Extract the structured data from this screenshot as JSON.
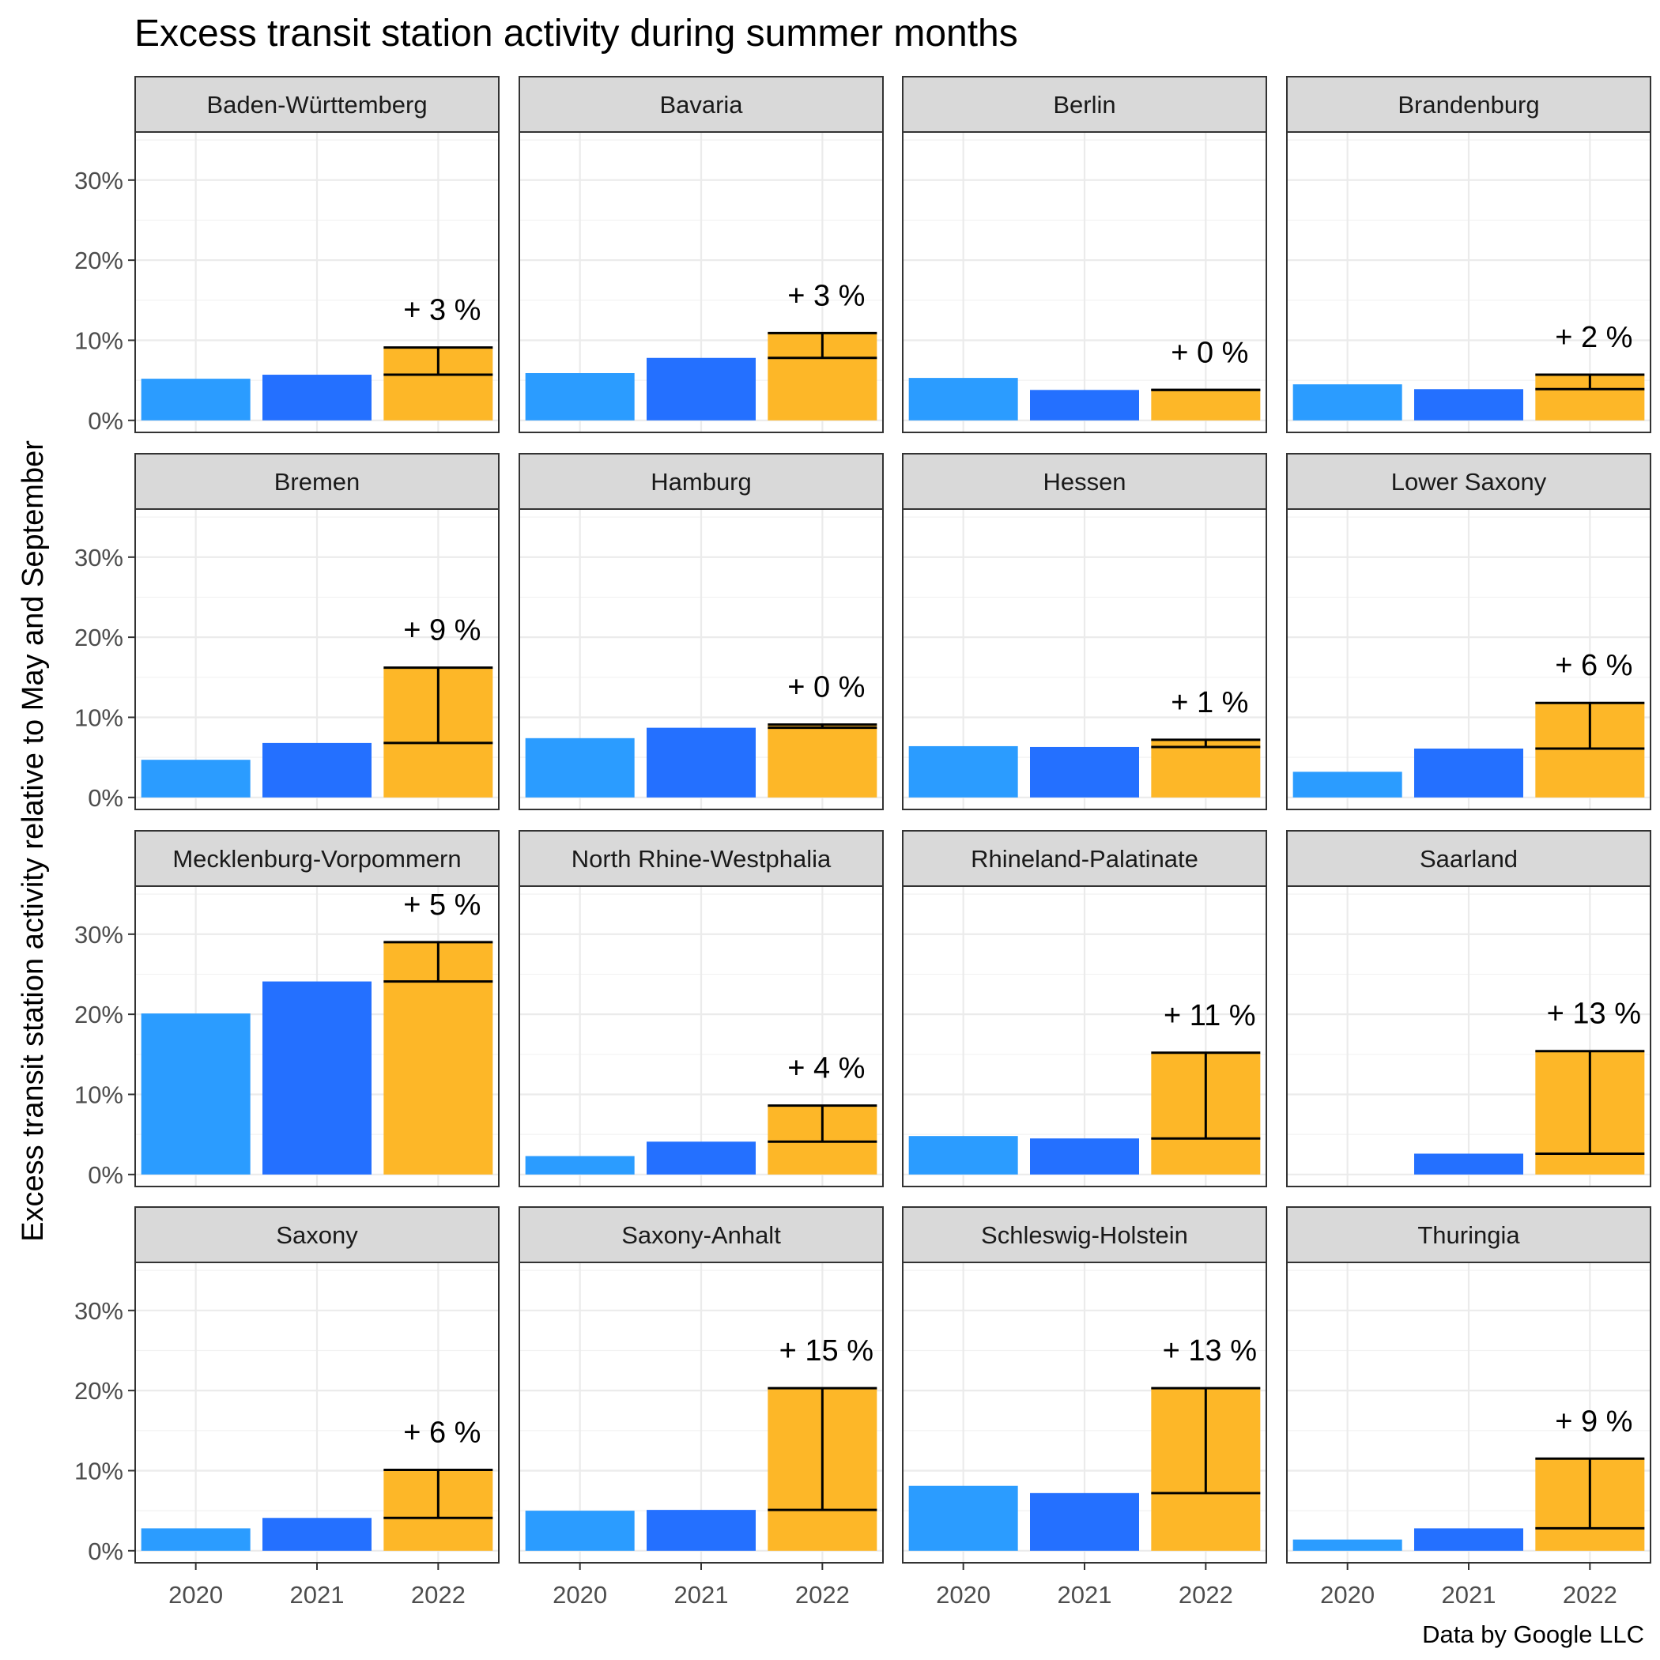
{
  "chart_data": {
    "type": "bar",
    "title": "Excess transit station activity during summer months",
    "ylabel": "Excess transit station activity relative to May and September",
    "xlabel": "",
    "caption": "Data by Google LLC",
    "categories": [
      "2020",
      "2021",
      "2022"
    ],
    "ylim": [
      -1.5,
      36
    ],
    "y_ticks": [
      0,
      10,
      20,
      30
    ],
    "y_tick_labels": [
      "0%",
      "10%",
      "20%",
      "30%"
    ],
    "grid": true,
    "colors": {
      "2020": "#2b9cff",
      "2021": "#2470ff",
      "2022": "#fdb728"
    },
    "facets": [
      {
        "name": "Baden-Württemberg",
        "values": [
          5.2,
          5.7,
          9.1
        ],
        "annotation": "+ 3 %"
      },
      {
        "name": "Bavaria",
        "values": [
          5.9,
          7.8,
          10.9
        ],
        "annotation": "+ 3 %"
      },
      {
        "name": "Berlin",
        "values": [
          5.3,
          3.8,
          3.8
        ],
        "annotation": "+ 0 %"
      },
      {
        "name": "Brandenburg",
        "values": [
          4.5,
          3.9,
          5.7
        ],
        "annotation": "+ 2 %"
      },
      {
        "name": "Bremen",
        "values": [
          4.7,
          6.8,
          16.2
        ],
        "annotation": "+ 9 %"
      },
      {
        "name": "Hamburg",
        "values": [
          7.4,
          8.7,
          9.1
        ],
        "annotation": "+ 0 %"
      },
      {
        "name": "Hessen",
        "values": [
          6.4,
          6.3,
          7.2
        ],
        "annotation": "+ 1 %"
      },
      {
        "name": "Lower Saxony",
        "values": [
          3.2,
          6.1,
          11.8
        ],
        "annotation": "+ 6 %"
      },
      {
        "name": "Mecklenburg-Vorpommern",
        "values": [
          20.1,
          24.1,
          29.0
        ],
        "annotation": "+ 5 %"
      },
      {
        "name": "North Rhine-Westphalia",
        "values": [
          2.3,
          4.1,
          8.6
        ],
        "annotation": "+ 4 %"
      },
      {
        "name": "Rhineland-Palatinate",
        "values": [
          4.8,
          4.5,
          15.2
        ],
        "annotation": "+ 11 %"
      },
      {
        "name": "Saarland",
        "values": [
          0.0,
          2.6,
          15.4
        ],
        "annotation": "+ 13 %"
      },
      {
        "name": "Saxony",
        "values": [
          2.8,
          4.1,
          10.1
        ],
        "annotation": "+ 6 %"
      },
      {
        "name": "Saxony-Anhalt",
        "values": [
          5.0,
          5.1,
          20.3
        ],
        "annotation": "+ 15 %"
      },
      {
        "name": "Schleswig-Holstein",
        "values": [
          8.1,
          7.2,
          20.3
        ],
        "annotation": "+ 13 %"
      },
      {
        "name": "Thuringia",
        "values": [
          1.4,
          2.8,
          11.5
        ],
        "annotation": "+ 9 %"
      }
    ]
  }
}
